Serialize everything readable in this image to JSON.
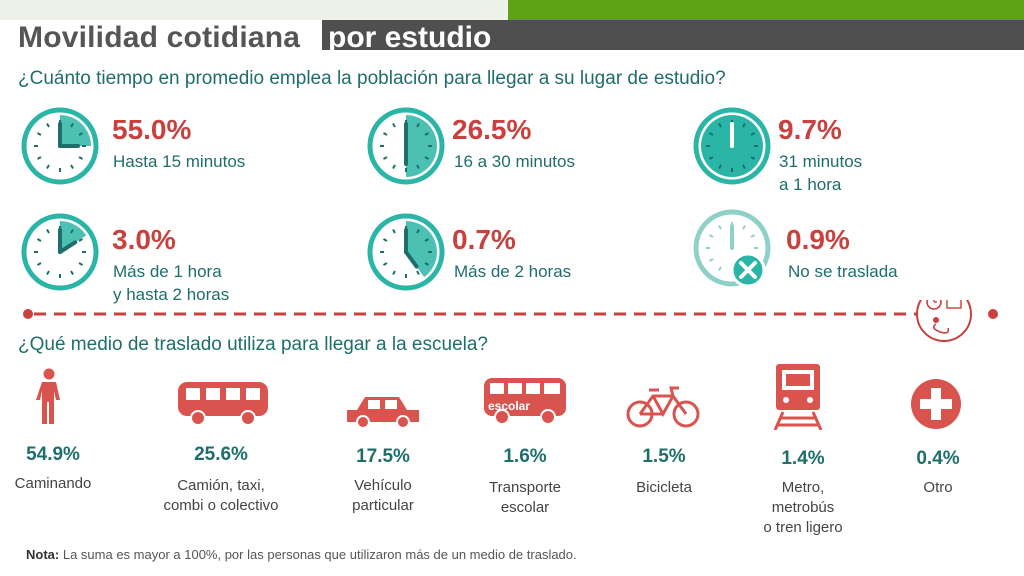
{
  "header": {
    "title": "Movilidad cotidiana",
    "subtitle": "por estudio"
  },
  "colors": {
    "accent_red": "#c9413f",
    "teal_text": "#1e6e6c",
    "clock_teal": "#2bb5a6",
    "icon_red": "#d9534f",
    "green_bar": "#5fa314",
    "dark_bar": "#4f4f4f"
  },
  "time_section": {
    "question": "¿Cuánto tiempo en promedio emplea la población para llegar a su lugar de estudio?",
    "items": [
      {
        "percent": "55.0%",
        "label_1": "Hasta 15 minutos",
        "label_2": "",
        "fill_fraction": 0.25,
        "icon": "clock-icon"
      },
      {
        "percent": "26.5%",
        "label_1": "16 a 30 minutos",
        "label_2": "",
        "fill_fraction": 0.5,
        "icon": "clock-icon"
      },
      {
        "percent": "9.7%",
        "label_1": "31 minutos",
        "label_2": "a 1 hora",
        "fill_fraction": 1.0,
        "icon": "clock-icon"
      },
      {
        "percent": "3.0%",
        "label_1": "Más de 1 hora",
        "label_2": "y hasta 2 horas",
        "fill_fraction": 0.16,
        "icon": "clock-icon"
      },
      {
        "percent": "0.7%",
        "label_1": "Más de 2 horas",
        "label_2": "",
        "fill_fraction": 0.4,
        "icon": "clock-icon"
      },
      {
        "percent": "0.9%",
        "label_1": "No se traslada",
        "label_2": "",
        "fill_fraction": 0,
        "icon": "clock-x-icon"
      }
    ]
  },
  "transport_section": {
    "question": "¿Qué medio de traslado utiliza para llegar a la escuela?",
    "items": [
      {
        "percent": "54.9%",
        "label_1": "Caminando",
        "label_2": "",
        "label_3": "",
        "icon": "walking-person-icon"
      },
      {
        "percent": "25.6%",
        "label_1": "Camión, taxi,",
        "label_2": "combi o colectivo",
        "label_3": "",
        "icon": "bus-icon"
      },
      {
        "percent": "17.5%",
        "label_1": "Vehículo",
        "label_2": "particular",
        "label_3": "",
        "icon": "car-icon"
      },
      {
        "percent": "1.6%",
        "label_1": "Transporte",
        "label_2": "escolar",
        "label_3": "",
        "icon": "school-bus-icon",
        "icon_text": "escolar"
      },
      {
        "percent": "1.5%",
        "label_1": "Bicicleta",
        "label_2": "",
        "label_3": "",
        "icon": "bicycle-icon"
      },
      {
        "percent": "1.4%",
        "label_1": "Metro,",
        "label_2": "metrobús",
        "label_3": "o tren ligero",
        "icon": "train-icon"
      },
      {
        "percent": "0.4%",
        "label_1": "Otro",
        "label_2": "",
        "label_3": "",
        "icon": "plus-icon"
      }
    ]
  },
  "note": {
    "label": "Nota:",
    "text": "La suma es mayor a 100%, por las personas que utilizaron más de un medio de traslado."
  }
}
